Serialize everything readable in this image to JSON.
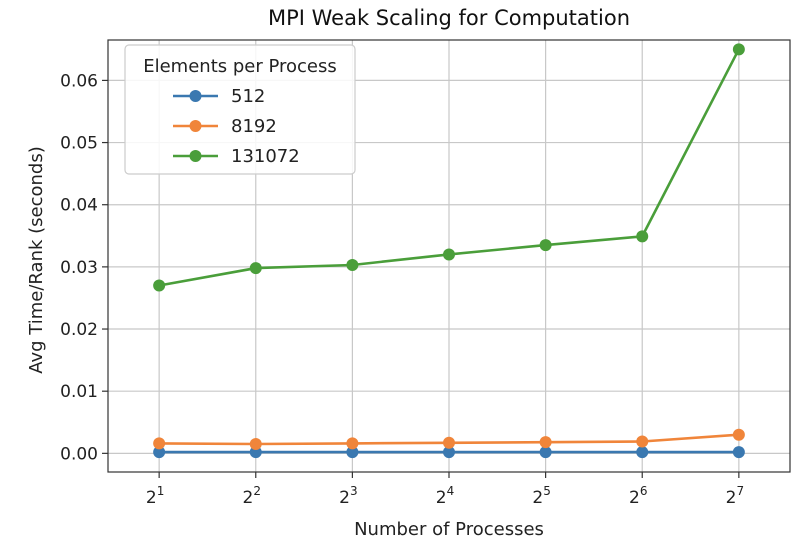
{
  "chart_data": {
    "type": "line",
    "title": "MPI Weak Scaling for Computation",
    "xlabel": "Number of Processes",
    "ylabel": "Avg Time/Rank (seconds)",
    "x": [
      2,
      4,
      8,
      16,
      32,
      64,
      128
    ],
    "x_tick_base": "2",
    "x_tick_exponents": [
      "1",
      "2",
      "3",
      "4",
      "5",
      "6",
      "7"
    ],
    "xscale": "log2",
    "y_ticks": [
      "0.00",
      "0.01",
      "0.02",
      "0.03",
      "0.04",
      "0.05",
      "0.06"
    ],
    "ylim": [
      -0.003,
      0.0665
    ],
    "grid": true,
    "legend": {
      "title": "Elements per Process",
      "placement": "top-left"
    },
    "series": [
      {
        "name": "512",
        "color": "#3a78b0",
        "values": [
          0.0002,
          0.0002,
          0.0002,
          0.0002,
          0.0002,
          0.0002,
          0.0002
        ]
      },
      {
        "name": "8192",
        "color": "#f0853a",
        "values": [
          0.0016,
          0.0015,
          0.0016,
          0.0017,
          0.0018,
          0.0019,
          0.003
        ]
      },
      {
        "name": "131072",
        "color": "#4a9e3a",
        "values": [
          0.027,
          0.0298,
          0.0303,
          0.032,
          0.0335,
          0.0349,
          0.065
        ]
      }
    ]
  }
}
